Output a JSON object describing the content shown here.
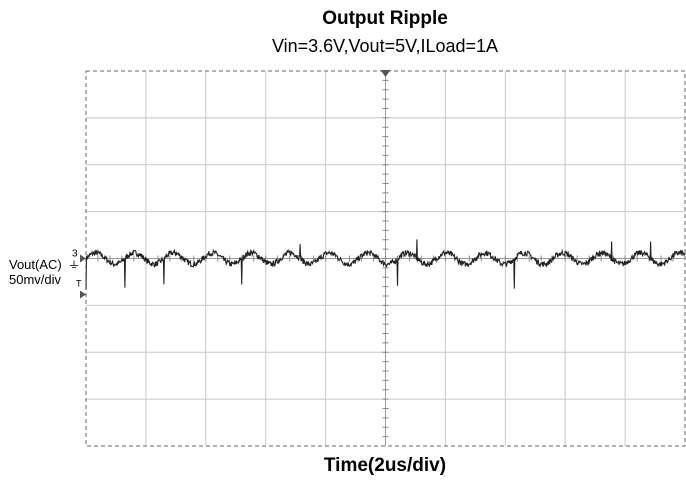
{
  "chart_data": {
    "type": "line",
    "title": "Output Ripple",
    "subtitle": "Vin=3.6V,Vout=5V,ILoad=1A",
    "xlabel": "Time(2us/div)",
    "channel": {
      "label": "Vout(AC)",
      "number": "3",
      "scale": "50mv/div",
      "trigger_marker": "T"
    },
    "grid": {
      "h_divisions": 10,
      "v_divisions": 8,
      "style": "oscilloscope"
    },
    "xlim": [
      0,
      20
    ],
    "x_unit": "us",
    "ylim": [
      -200,
      200
    ],
    "y_unit": "mV",
    "series": [
      {
        "baseline_mV": 0,
        "ripple_period_us": 1.3,
        "ripple_amplitude_mV": 6,
        "noise_mV": 3,
        "spike_period_us": 1.3,
        "spike_down_mV": 30,
        "spike_up_mV": 18,
        "colors": {
          "trace": "#222222"
        }
      }
    ],
    "colors": {
      "grid": "#c8c8c8",
      "border": "#666666",
      "trace": "#222222",
      "marker": "#555555"
    }
  }
}
